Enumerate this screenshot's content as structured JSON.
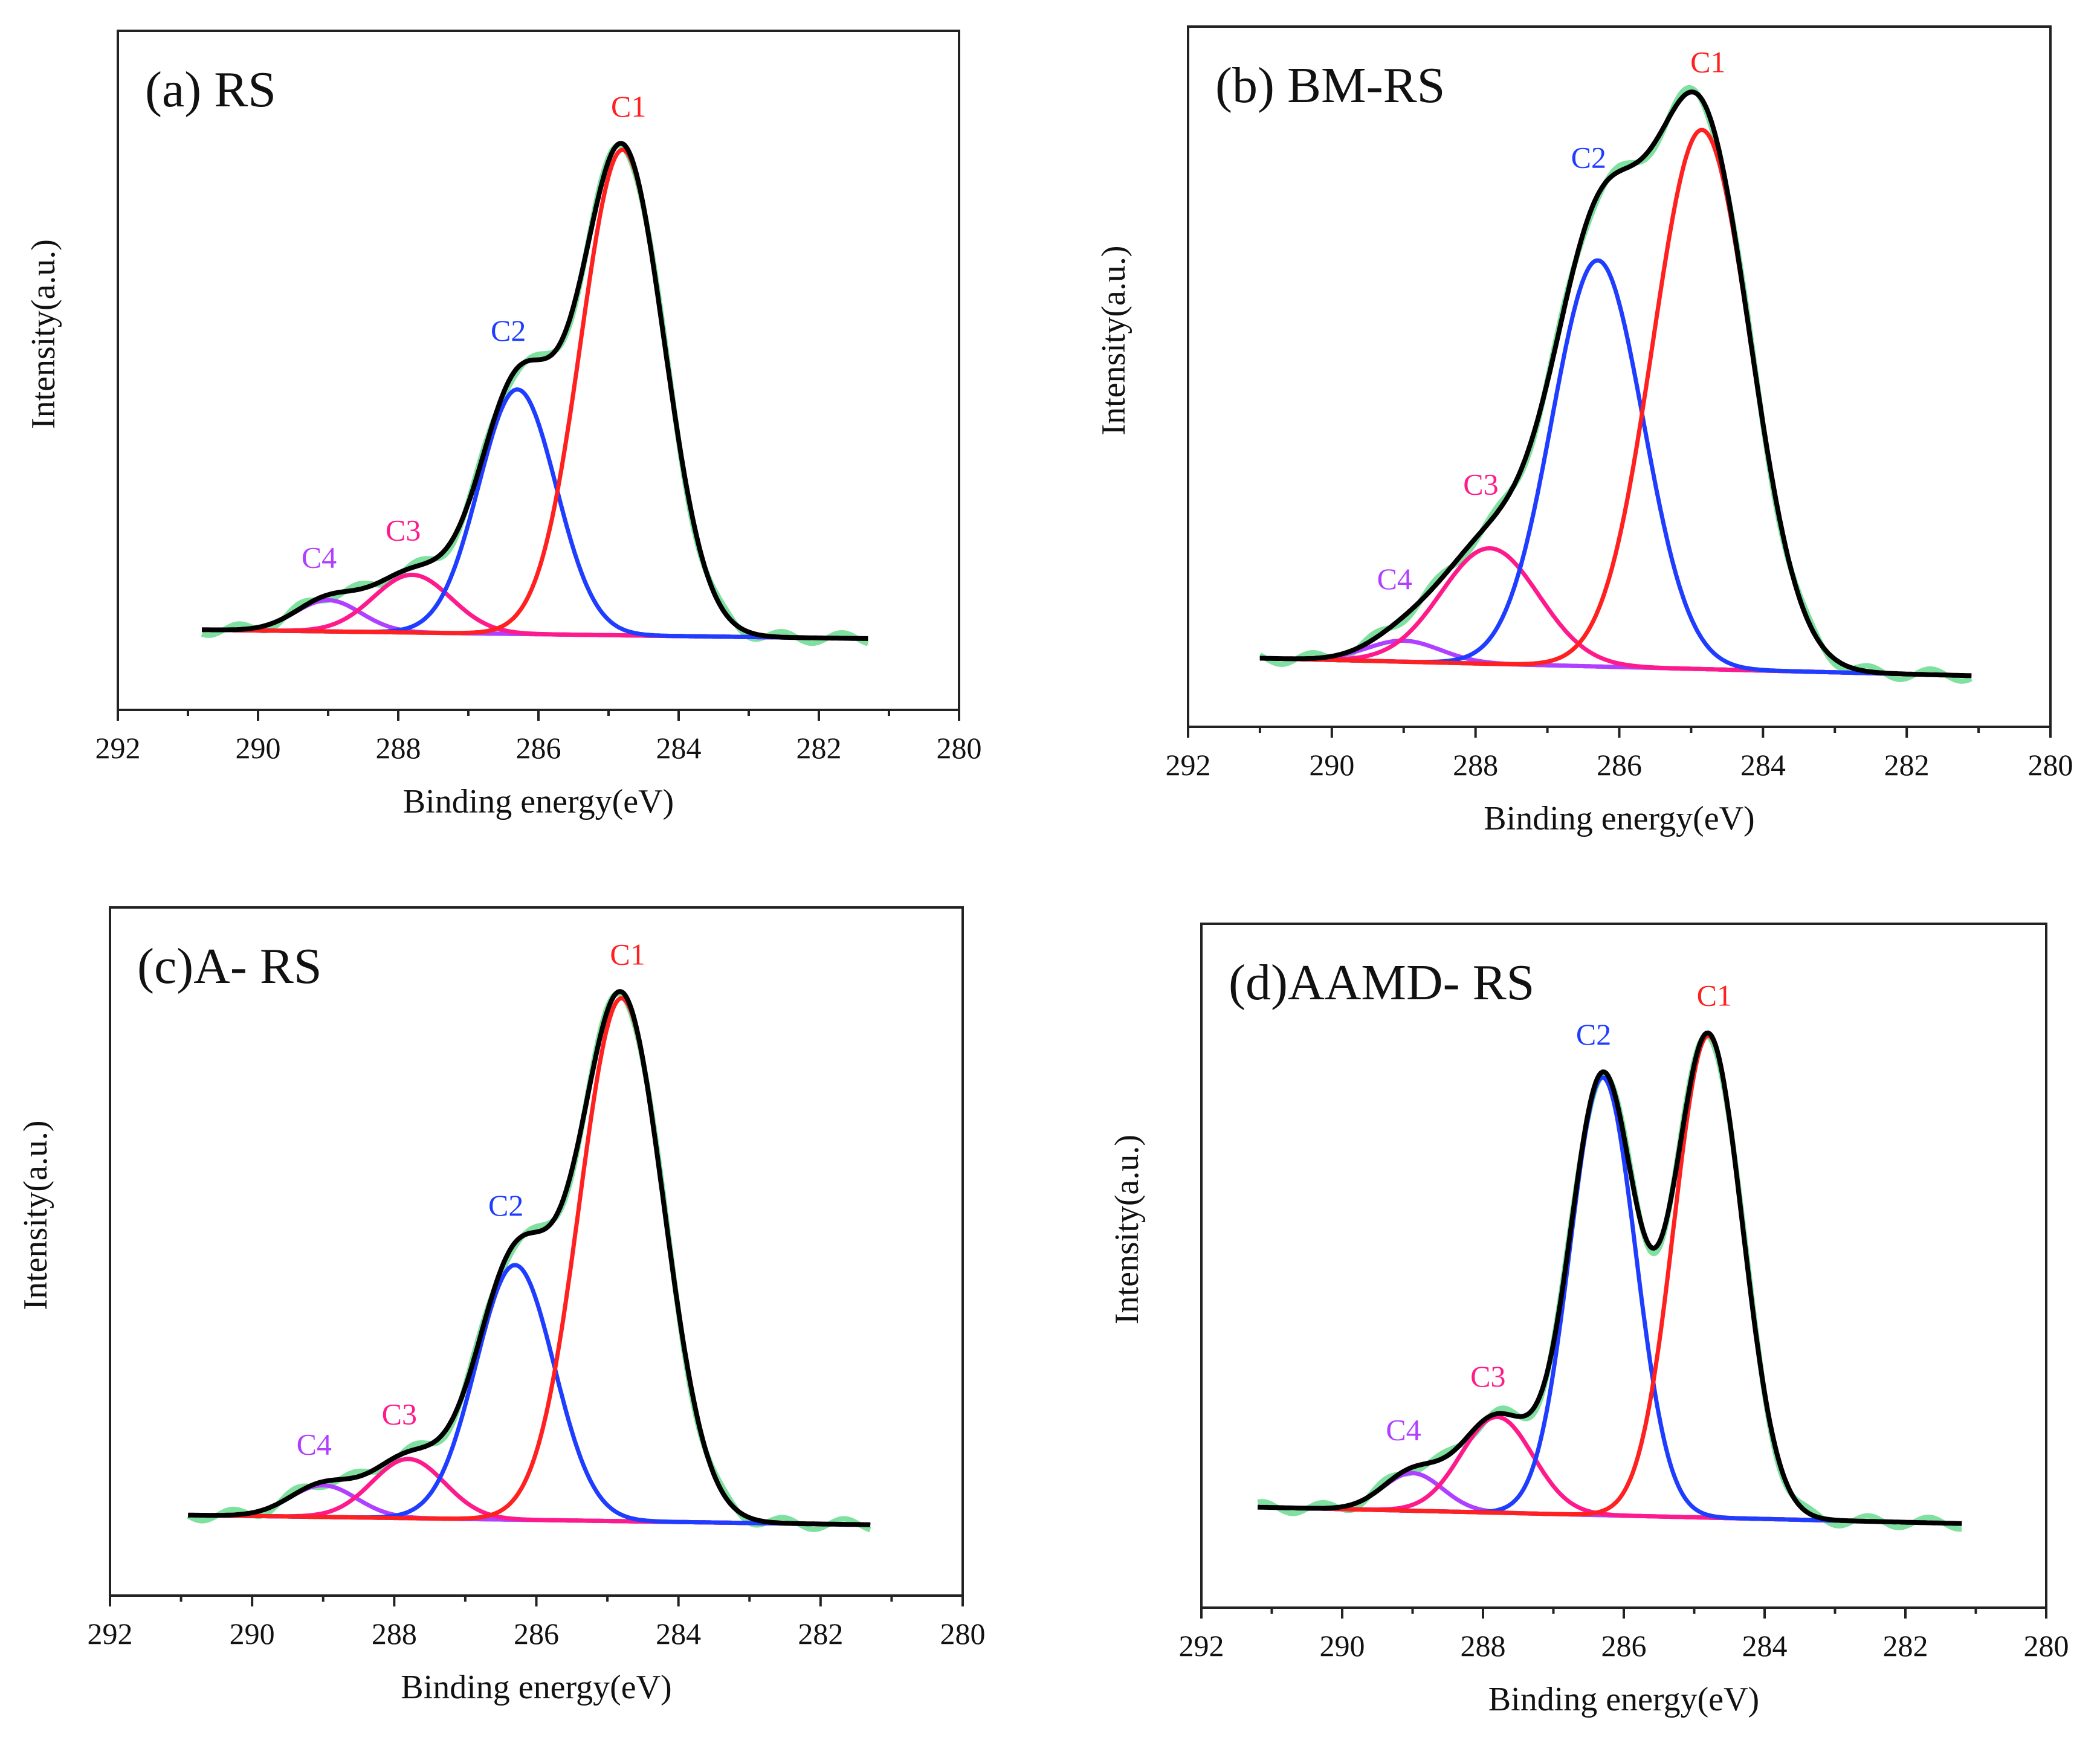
{
  "chart_data": [
    {
      "type": "line",
      "title": "(a) RS",
      "xlabel": "Binding energy(eV)",
      "ylabel": "Intensity(a.u.)",
      "xlim": [
        292,
        280
      ],
      "ylim": [
        0,
        100
      ],
      "xticks": [
        "292",
        "290",
        "288",
        "286",
        "284",
        "282",
        "280"
      ],
      "x_range": [
        290.8,
        281.3
      ],
      "baseline": [
        11.8,
        10.5
      ],
      "peaks": [
        {
          "name": "C1",
          "center": 284.8,
          "height": 71.5,
          "fwhm": 1.4,
          "color": "#ff2020"
        },
        {
          "name": "C2",
          "center": 286.3,
          "height": 36,
          "fwhm": 1.3,
          "color": "#1f3dff"
        },
        {
          "name": "C3",
          "center": 287.8,
          "height": 8.5,
          "fwhm": 1.3,
          "color": "#ff1a8c"
        },
        {
          "name": "C4",
          "center": 289.0,
          "height": 4.6,
          "fwhm": 1.1,
          "color": "#b040ff"
        }
      ]
    },
    {
      "type": "line",
      "title": "(b) BM-RS",
      "xlabel": "Binding energy(eV)",
      "ylabel": "Intensity(a.u.)",
      "xlim": [
        292,
        280
      ],
      "ylim": [
        0,
        100
      ],
      "xticks": [
        "292",
        "290",
        "288",
        "286",
        "284",
        "282",
        "280"
      ],
      "x_range": [
        291.0,
        281.1
      ],
      "baseline": [
        9.8,
        7.3
      ],
      "peaks": [
        {
          "name": "C1",
          "center": 284.85,
          "height": 77,
          "fwhm": 1.6,
          "color": "#ff2020"
        },
        {
          "name": "C2",
          "center": 286.3,
          "height": 58,
          "fwhm": 1.5,
          "color": "#1f3dff"
        },
        {
          "name": "C3",
          "center": 287.8,
          "height": 16.5,
          "fwhm": 1.6,
          "color": "#ff1a8c"
        },
        {
          "name": "C4",
          "center": 289.0,
          "height": 3,
          "fwhm": 1.2,
          "color": "#b040ff"
        }
      ]
    },
    {
      "type": "line",
      "title": "(c)A- RS",
      "xlabel": "Binding energy(eV)",
      "ylabel": "Intensity(a.u.)",
      "xlim": [
        292,
        280
      ],
      "ylim": [
        0,
        100
      ],
      "xticks": [
        "292",
        "290",
        "288",
        "286",
        "284",
        "282",
        "280"
      ],
      "x_range": [
        290.9,
        281.3
      ],
      "baseline": [
        11.7,
        10.3
      ],
      "peaks": [
        {
          "name": "C1",
          "center": 284.8,
          "height": 76,
          "fwhm": 1.4,
          "color": "#ff2020"
        },
        {
          "name": "C2",
          "center": 286.3,
          "height": 37,
          "fwhm": 1.3,
          "color": "#1f3dff"
        },
        {
          "name": "C3",
          "center": 287.8,
          "height": 8.6,
          "fwhm": 1.2,
          "color": "#ff1a8c"
        },
        {
          "name": "C4",
          "center": 289.0,
          "height": 4.6,
          "fwhm": 1.1,
          "color": "#b040ff"
        }
      ]
    },
    {
      "type": "line",
      "title": "(d)AAMD- RS",
      "xlabel": "Binding energy(eV)",
      "ylabel": "Intensity(a.u.)",
      "xlim": [
        292,
        280
      ],
      "ylim": [
        0,
        100
      ],
      "xticks": [
        "292",
        "290",
        "288",
        "286",
        "284",
        "282",
        "280"
      ],
      "x_range": [
        291.2,
        281.2
      ],
      "baseline": [
        14.7,
        12.3
      ],
      "peaks": [
        {
          "name": "C1",
          "center": 284.8,
          "height": 70.5,
          "fwhm": 1.15,
          "color": "#ff2020"
        },
        {
          "name": "C2",
          "center": 286.3,
          "height": 64,
          "fwhm": 1.1,
          "color": "#1f3dff"
        },
        {
          "name": "C3",
          "center": 287.8,
          "height": 14,
          "fwhm": 1.2,
          "color": "#ff1a8c"
        },
        {
          "name": "C4",
          "center": 289.0,
          "height": 5.5,
          "fwhm": 1.0,
          "color": "#b040ff"
        }
      ]
    }
  ],
  "colors": {
    "envelope": "#000000",
    "raw": "#7fe0a0",
    "background": "#a040ff"
  }
}
